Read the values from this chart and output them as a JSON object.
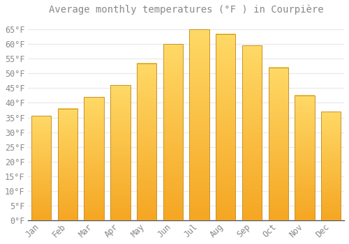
{
  "title": "Average monthly temperatures (°F ) in Courpière",
  "months": [
    "Jan",
    "Feb",
    "Mar",
    "Apr",
    "May",
    "Jun",
    "Jul",
    "Aug",
    "Sep",
    "Oct",
    "Nov",
    "Dec"
  ],
  "values": [
    35.5,
    38.0,
    42.0,
    46.0,
    53.5,
    60.0,
    65.0,
    63.5,
    59.5,
    52.0,
    42.5,
    37.0
  ],
  "bar_color_bottom": "#F5A623",
  "bar_color_top": "#FFD966",
  "bar_edge_color": "#C8922A",
  "background_color": "#FFFFFF",
  "grid_color": "#E8E8E8",
  "text_color": "#888888",
  "axis_color": "#555555",
  "ylim": [
    0,
    68
  ],
  "yticks": [
    0,
    5,
    10,
    15,
    20,
    25,
    30,
    35,
    40,
    45,
    50,
    55,
    60,
    65
  ],
  "title_fontsize": 10,
  "tick_fontsize": 8.5
}
